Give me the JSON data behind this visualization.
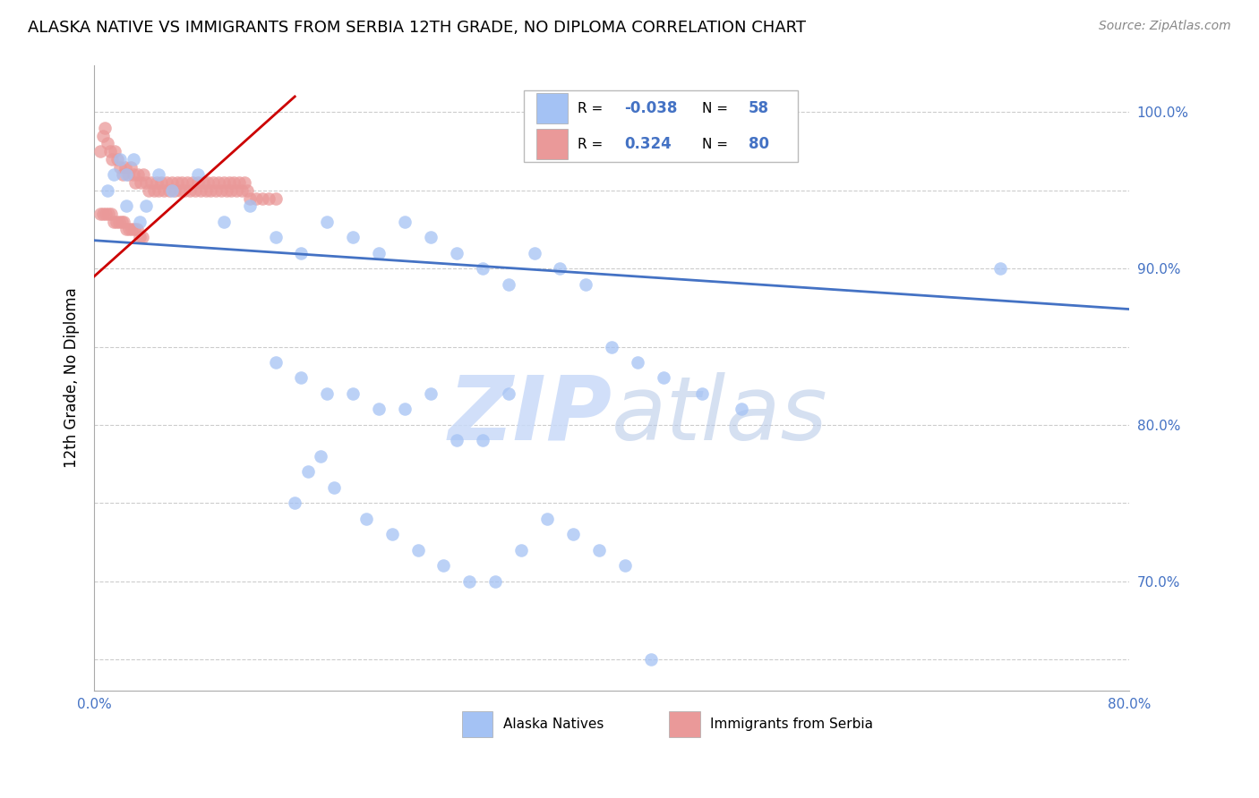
{
  "title": "ALASKA NATIVE VS IMMIGRANTS FROM SERBIA 12TH GRADE, NO DIPLOMA CORRELATION CHART",
  "source": "Source: ZipAtlas.com",
  "ylabel": "12th Grade, No Diploma",
  "blue_R": "-0.038",
  "blue_N": "58",
  "pink_R": "0.324",
  "pink_N": "80",
  "blue_color": "#a4c2f4",
  "pink_color": "#ea9999",
  "trendline_blue_color": "#4472c4",
  "trendline_pink_color": "#cc0000",
  "watermark_zip": "ZIP",
  "watermark_atlas": "atlas",
  "legend_label_blue": "Alaska Natives",
  "legend_label_pink": "Immigrants from Serbia",
  "xlim": [
    0.0,
    0.8
  ],
  "ylim": [
    0.63,
    1.03
  ],
  "blue_scatter_x": [
    0.02,
    0.025,
    0.03,
    0.01,
    0.015,
    0.025,
    0.035,
    0.04,
    0.05,
    0.06,
    0.08,
    0.1,
    0.12,
    0.14,
    0.16,
    0.18,
    0.2,
    0.22,
    0.24,
    0.26,
    0.28,
    0.3,
    0.32,
    0.34,
    0.36,
    0.38,
    0.4,
    0.42,
    0.44,
    0.47,
    0.5,
    0.7,
    0.14,
    0.16,
    0.18,
    0.2,
    0.22,
    0.24,
    0.26,
    0.28,
    0.3,
    0.32,
    0.165,
    0.175,
    0.185,
    0.155,
    0.21,
    0.23,
    0.25,
    0.27,
    0.29,
    0.31,
    0.33,
    0.35,
    0.37,
    0.39,
    0.41,
    0.43
  ],
  "blue_scatter_y": [
    0.97,
    0.96,
    0.97,
    0.95,
    0.96,
    0.94,
    0.93,
    0.94,
    0.96,
    0.95,
    0.96,
    0.93,
    0.94,
    0.92,
    0.91,
    0.93,
    0.92,
    0.91,
    0.93,
    0.92,
    0.91,
    0.9,
    0.89,
    0.91,
    0.9,
    0.89,
    0.85,
    0.84,
    0.83,
    0.82,
    0.81,
    0.9,
    0.84,
    0.83,
    0.82,
    0.82,
    0.81,
    0.81,
    0.82,
    0.79,
    0.79,
    0.82,
    0.77,
    0.78,
    0.76,
    0.75,
    0.74,
    0.73,
    0.72,
    0.71,
    0.7,
    0.7,
    0.72,
    0.74,
    0.73,
    0.72,
    0.71,
    0.65
  ],
  "pink_scatter_x": [
    0.005,
    0.007,
    0.008,
    0.01,
    0.012,
    0.014,
    0.016,
    0.018,
    0.02,
    0.022,
    0.024,
    0.026,
    0.028,
    0.03,
    0.032,
    0.034,
    0.036,
    0.038,
    0.04,
    0.042,
    0.044,
    0.046,
    0.048,
    0.05,
    0.052,
    0.054,
    0.056,
    0.058,
    0.06,
    0.062,
    0.064,
    0.066,
    0.068,
    0.07,
    0.072,
    0.074,
    0.076,
    0.078,
    0.08,
    0.082,
    0.084,
    0.086,
    0.088,
    0.09,
    0.092,
    0.094,
    0.096,
    0.098,
    0.1,
    0.102,
    0.104,
    0.106,
    0.108,
    0.11,
    0.112,
    0.114,
    0.116,
    0.118,
    0.12,
    0.125,
    0.13,
    0.135,
    0.14,
    0.005,
    0.007,
    0.009,
    0.011,
    0.013,
    0.015,
    0.017,
    0.019,
    0.021,
    0.023,
    0.025,
    0.027,
    0.029,
    0.031,
    0.033,
    0.035,
    0.037
  ],
  "pink_scatter_y": [
    0.975,
    0.985,
    0.99,
    0.98,
    0.975,
    0.97,
    0.975,
    0.97,
    0.965,
    0.96,
    0.965,
    0.96,
    0.965,
    0.96,
    0.955,
    0.96,
    0.955,
    0.96,
    0.955,
    0.95,
    0.955,
    0.95,
    0.955,
    0.95,
    0.955,
    0.95,
    0.955,
    0.95,
    0.955,
    0.95,
    0.955,
    0.95,
    0.955,
    0.95,
    0.955,
    0.95,
    0.955,
    0.95,
    0.955,
    0.95,
    0.955,
    0.95,
    0.955,
    0.95,
    0.955,
    0.95,
    0.955,
    0.95,
    0.955,
    0.95,
    0.955,
    0.95,
    0.955,
    0.95,
    0.955,
    0.95,
    0.955,
    0.95,
    0.945,
    0.945,
    0.945,
    0.945,
    0.945,
    0.935,
    0.935,
    0.935,
    0.935,
    0.935,
    0.93,
    0.93,
    0.93,
    0.93,
    0.93,
    0.925,
    0.925,
    0.925,
    0.925,
    0.925,
    0.92,
    0.92
  ],
  "blue_trend_x": [
    0.0,
    0.8
  ],
  "blue_trend_y": [
    0.918,
    0.874
  ],
  "pink_trend_x": [
    0.0,
    0.155
  ],
  "pink_trend_y": [
    0.895,
    1.01
  ],
  "xticks": [
    0.0,
    0.1,
    0.2,
    0.3,
    0.4,
    0.5,
    0.6,
    0.7,
    0.8
  ],
  "yticks": [
    0.65,
    0.7,
    0.75,
    0.8,
    0.85,
    0.9,
    0.95,
    1.0
  ],
  "ytick_labels": [
    "",
    "70.0%",
    "",
    "80.0%",
    "",
    "90.0%",
    "",
    "100.0%"
  ],
  "grid_color": "#cccccc",
  "tick_color": "#4472c4"
}
